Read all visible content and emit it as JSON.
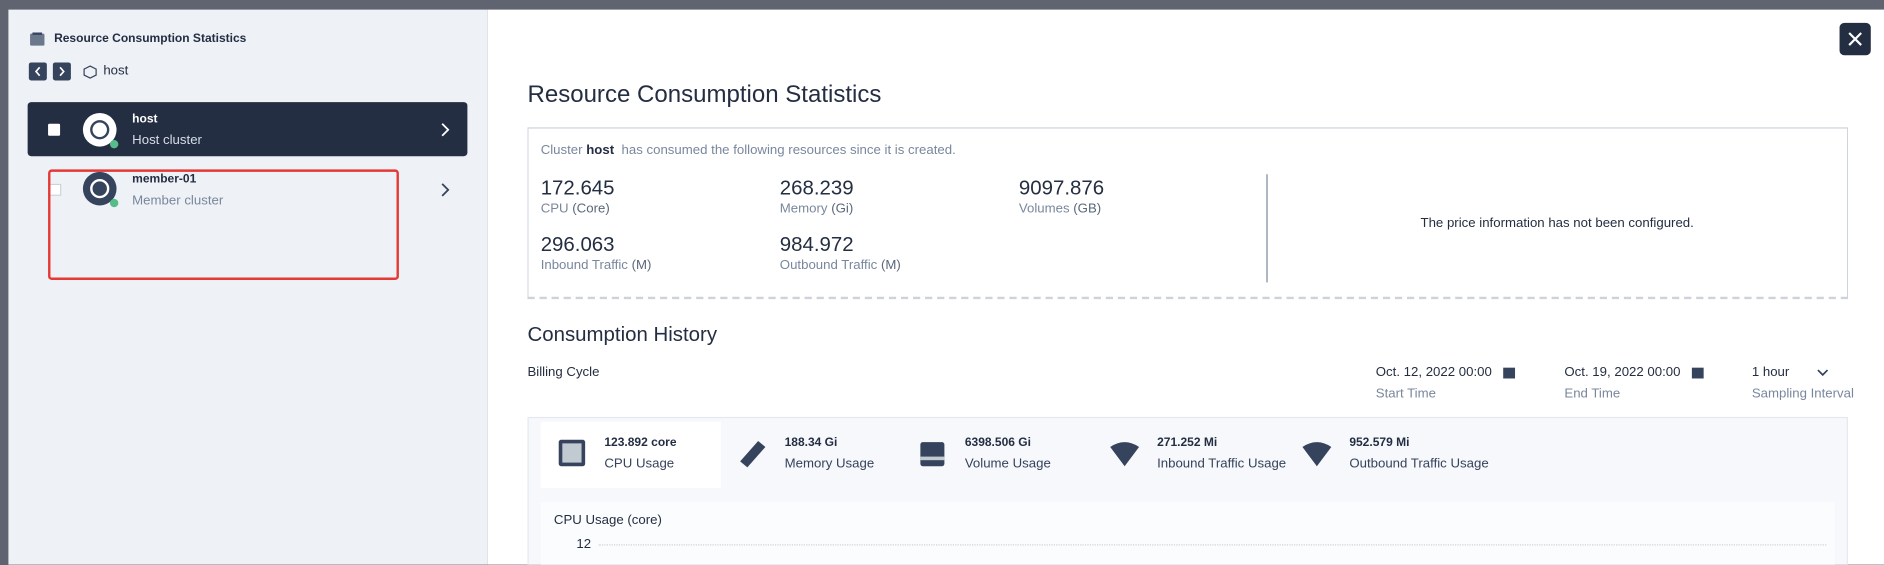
{
  "sidebar": {
    "title": "Resource Consumption Statistics",
    "breadcrumb": "host",
    "clusters": [
      {
        "name": "host",
        "type": "Host cluster"
      },
      {
        "name": "member-01",
        "type": "Member cluster"
      }
    ]
  },
  "main": {
    "title": "Resource Consumption Statistics",
    "summary": {
      "prefix": "Cluster",
      "cluster": "host",
      "suffix": "has consumed the following resources since it is created.",
      "metrics": [
        {
          "value": 172.645,
          "label": "CPU",
          "unit": "(Core)"
        },
        {
          "value": 268.239,
          "label": "Memory",
          "unit": "(Gi)"
        },
        {
          "value": 9097.876,
          "label": "Volumes",
          "unit": "(GB)"
        },
        {
          "value": 296.063,
          "label": "Inbound Traffic",
          "unit": "(M)"
        },
        {
          "value": 984.972,
          "label": "Outbound Traffic",
          "unit": "(M)"
        }
      ],
      "price_note": "The price information has not been configured."
    },
    "history": {
      "title": "Consumption History",
      "billing_cycle": "Billing Cycle",
      "start": {
        "value": "Oct. 12, 2022 00:00",
        "label": "Start Time"
      },
      "end": {
        "value": "Oct. 19, 2022 00:00",
        "label": "End Time"
      },
      "interval": {
        "value": "1 hour",
        "label": "Sampling Interval"
      },
      "usage": [
        {
          "value": "123.892 core",
          "label": "CPU Usage"
        },
        {
          "value": "188.34 Gi",
          "label": "Memory Usage"
        },
        {
          "value": "6398.506 Gi",
          "label": "Volume Usage"
        },
        {
          "value": "271.252 Mi",
          "label": "Inbound Traffic Usage"
        },
        {
          "value": "952.579 Mi",
          "label": "Outbound Traffic Usage"
        }
      ],
      "chart": {
        "title": "CPU Usage (core)",
        "yticks": [
          12
        ]
      }
    }
  }
}
